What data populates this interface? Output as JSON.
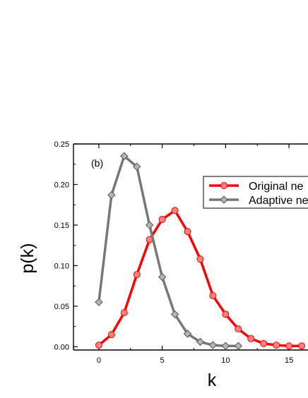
{
  "chart_data": {
    "type": "line",
    "title": "",
    "panel_label": "(b)",
    "xlabel": "k",
    "ylabel": "p(k)",
    "xlim": [
      -2,
      16.5
    ],
    "ylim": [
      -0.004,
      0.25
    ],
    "xticks": [
      0,
      5,
      10,
      15
    ],
    "xtick_labels": [
      "0",
      "5",
      "10",
      "15"
    ],
    "yticks": [
      0.0,
      0.05,
      0.1,
      0.15,
      0.2,
      0.25
    ],
    "ytick_labels": [
      "0.00",
      "0.05",
      "0.10",
      "0.15",
      "0.20",
      "0.25"
    ],
    "grid": false,
    "legend_position": "top-right",
    "series": [
      {
        "name": "Original ne",
        "color": "#ff0000",
        "marker": "circle",
        "marker_fill": "#ff8080",
        "x": [
          0,
          1,
          2,
          3,
          4,
          5,
          6,
          7,
          8,
          9,
          10,
          11,
          12,
          13,
          14,
          15,
          16
        ],
        "y": [
          0.002,
          0.015,
          0.042,
          0.089,
          0.132,
          0.157,
          0.168,
          0.142,
          0.108,
          0.063,
          0.04,
          0.022,
          0.01,
          0.004,
          0.002,
          0.001,
          0.001
        ]
      },
      {
        "name": "Adaptive ne",
        "color": "#777777",
        "marker": "diamond",
        "marker_fill": "#b4b4b4",
        "x": [
          0,
          1,
          2,
          3,
          4,
          5,
          6,
          7,
          8,
          9,
          10,
          11
        ],
        "y": [
          0.055,
          0.187,
          0.235,
          0.222,
          0.15,
          0.086,
          0.04,
          0.016,
          0.006,
          0.002,
          0.001,
          0.001
        ]
      }
    ]
  }
}
